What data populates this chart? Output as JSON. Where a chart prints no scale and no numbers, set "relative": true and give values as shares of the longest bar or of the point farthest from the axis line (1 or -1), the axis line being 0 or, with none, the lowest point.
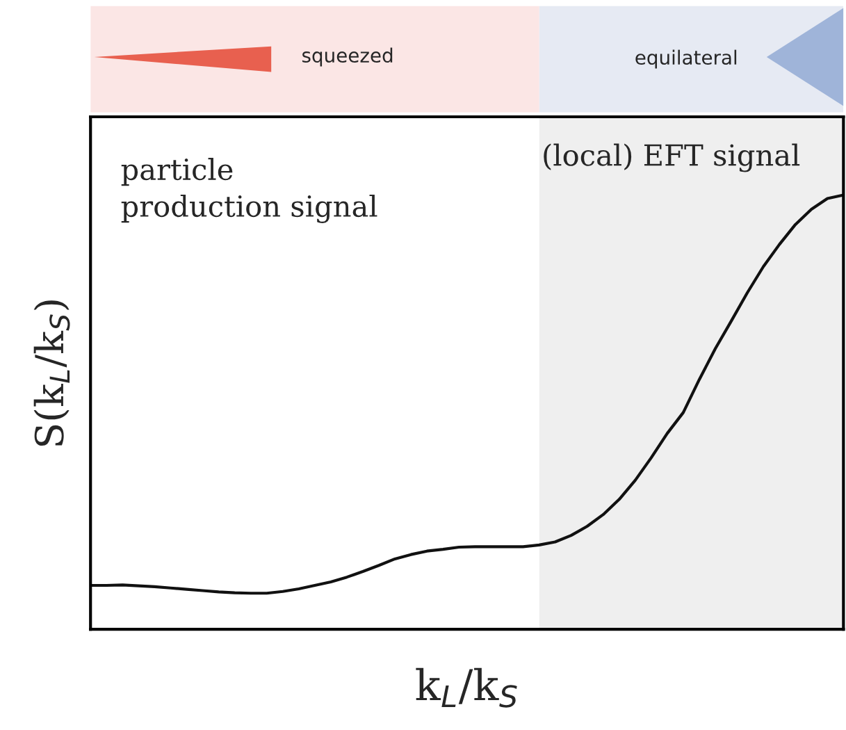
{
  "chart_data": {
    "type": "line",
    "relative": true,
    "tick_labels": false,
    "xlabel": "k$_{L}$/k$_{S}$",
    "ylabel": "S(k$_{L}$/k$_{S}$)",
    "categories": [
      null,
      null,
      null,
      null,
      null,
      null,
      null,
      null,
      null,
      null,
      null,
      null,
      null,
      null,
      null,
      null,
      null,
      null,
      null,
      null,
      null,
      null,
      null,
      null,
      null,
      null,
      null,
      null,
      null,
      null,
      null,
      null,
      null,
      null,
      null,
      null,
      null,
      null,
      null,
      null,
      null,
      null,
      null,
      null,
      null,
      null,
      null,
      null
    ],
    "series": [
      {
        "color": "#111111",
        "values": [
          0.101,
          0.101,
          0.102,
          0.1,
          0.098,
          0.095,
          0.092,
          0.089,
          0.086,
          0.084,
          0.083,
          0.083,
          0.087,
          0.093,
          0.101,
          0.109,
          0.12,
          0.133,
          0.147,
          0.162,
          0.172,
          0.18,
          0.184,
          0.189,
          0.19,
          0.19,
          0.19,
          0.19,
          0.194,
          0.201,
          0.216,
          0.237,
          0.264,
          0.299,
          0.343,
          0.395,
          0.451,
          0.499,
          0.575,
          0.646,
          0.71,
          0.775,
          0.835,
          0.886,
          0.932,
          0.967,
          0.992,
          1.0
        ]
      }
    ],
    "annotations": [
      "particle\nproduction signal",
      "squeezed",
      "equilateral",
      "(local) EFT signal"
    ]
  }
}
